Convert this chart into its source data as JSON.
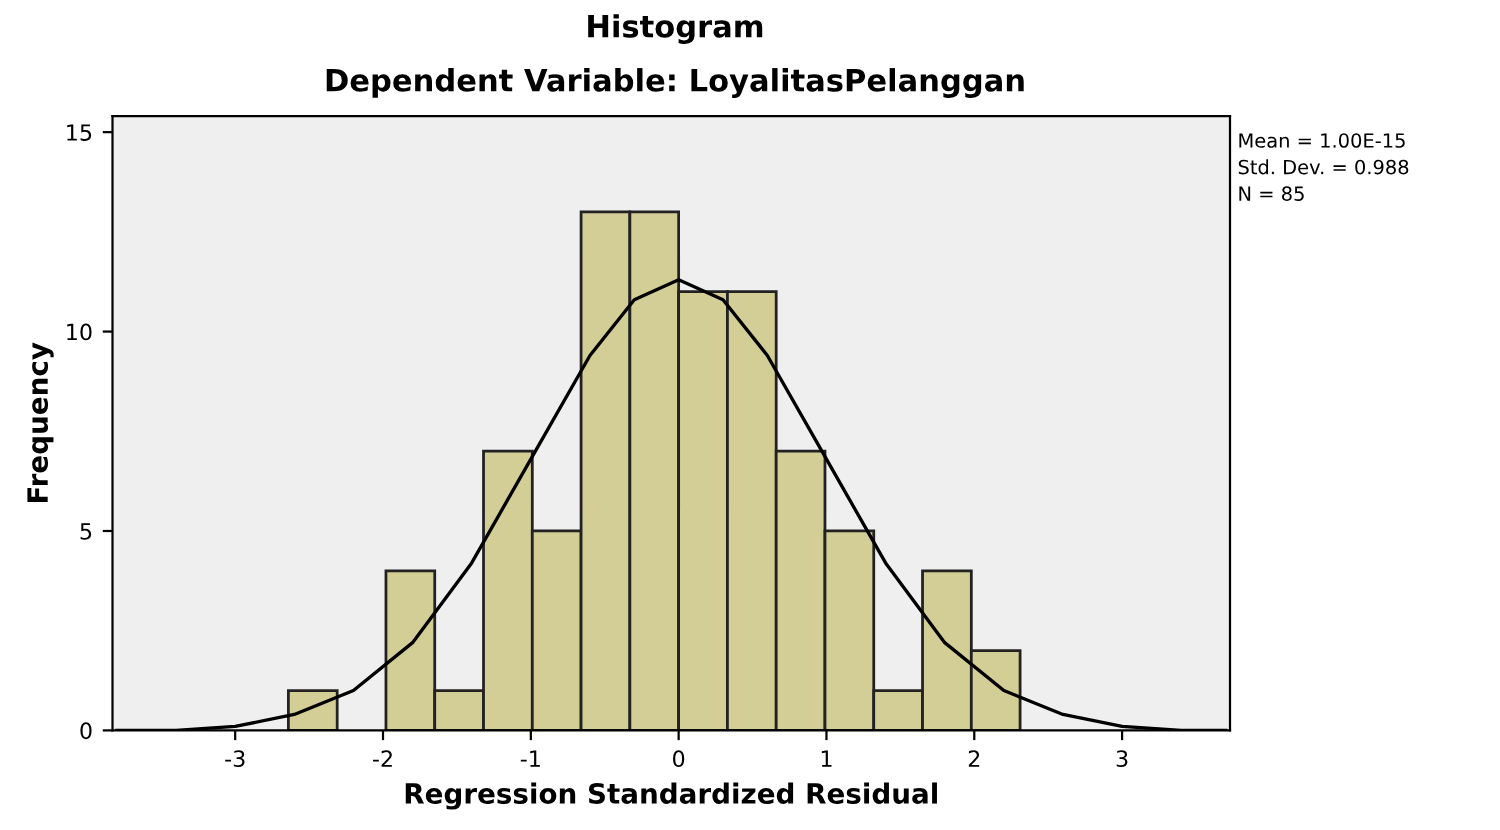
{
  "chart_data": {
    "type": "histogram",
    "title": "Histogram",
    "subtitle": "Dependent Variable: LoyalitasPelanggan",
    "xlabel": "Regression Standardized Residual",
    "ylabel": "Frequency",
    "bins": [
      -2.64,
      -2.31,
      -1.98,
      -1.65,
      -1.32,
      -0.99,
      -0.66,
      -0.33,
      0,
      0.33,
      0.66,
      0.99,
      1.32,
      1.65,
      1.98,
      2.31
    ],
    "values": [
      1,
      0,
      4,
      1,
      7,
      5,
      13,
      13,
      11,
      11,
      7,
      5,
      1,
      4,
      2
    ],
    "color": "#d3ce96",
    "series": [
      {
        "type": "line",
        "color": "#000000",
        "x": [
          -3.8,
          -3.4,
          -3.0,
          -2.6,
          -2.2,
          -1.8,
          -1.4,
          -1.0,
          -0.6,
          -0.3,
          0,
          0.3,
          0.6,
          1.0,
          1.4,
          1.8,
          2.2,
          2.6,
          3.0,
          3.4,
          3.7
        ],
        "values": [
          0.0,
          0.0,
          0.1,
          0.4,
          1.0,
          2.2,
          4.2,
          6.8,
          9.4,
          10.8,
          11.3,
          10.8,
          9.4,
          6.8,
          4.2,
          2.2,
          1.0,
          0.4,
          0.1,
          0.0,
          0.0
        ]
      }
    ],
    "xlim": [
      -3.83,
      3.73
    ],
    "ylim": [
      0,
      15.4
    ],
    "xticks": [
      -3,
      -2,
      -1,
      0,
      1,
      2,
      3
    ],
    "yticks": [
      0,
      5,
      10,
      15
    ],
    "grid": false,
    "legend": false,
    "annotations": [
      "Mean = 1.00E-15",
      "Std. Dev. = 0.988",
      "N = 85"
    ]
  }
}
